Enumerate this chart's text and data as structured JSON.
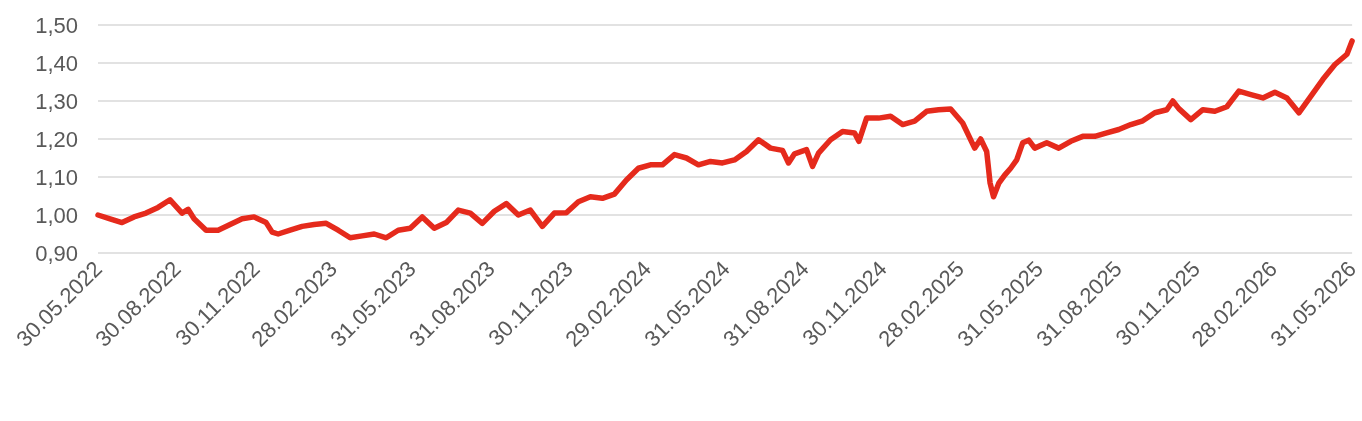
{
  "chart_data": {
    "type": "line",
    "x": [
      "2022-05-30",
      "2022-06-13",
      "2022-06-27",
      "2022-07-11",
      "2022-07-25",
      "2022-08-08",
      "2022-08-22",
      "2022-09-05",
      "2022-09-12",
      "2022-09-19",
      "2022-10-03",
      "2022-10-17",
      "2022-10-31",
      "2022-11-14",
      "2022-11-28",
      "2022-12-12",
      "2022-12-19",
      "2022-12-26",
      "2023-01-09",
      "2023-01-23",
      "2023-02-06",
      "2023-02-20",
      "2023-03-06",
      "2023-03-20",
      "2023-04-03",
      "2023-04-17",
      "2023-05-01",
      "2023-05-15",
      "2023-05-29",
      "2023-06-12",
      "2023-06-26",
      "2023-07-10",
      "2023-07-24",
      "2023-08-07",
      "2023-08-21",
      "2023-09-04",
      "2023-09-18",
      "2023-10-02",
      "2023-10-16",
      "2023-10-30",
      "2023-11-13",
      "2023-11-27",
      "2023-12-11",
      "2023-12-25",
      "2024-01-08",
      "2024-01-22",
      "2024-02-05",
      "2024-02-19",
      "2024-03-04",
      "2024-03-18",
      "2024-04-01",
      "2024-04-15",
      "2024-04-29",
      "2024-05-13",
      "2024-05-27",
      "2024-06-10",
      "2024-06-24",
      "2024-07-08",
      "2024-07-22",
      "2024-08-05",
      "2024-08-12",
      "2024-08-19",
      "2024-09-02",
      "2024-09-09",
      "2024-09-16",
      "2024-09-30",
      "2024-10-14",
      "2024-10-28",
      "2024-11-02",
      "2024-11-11",
      "2024-11-25",
      "2024-12-09",
      "2024-12-23",
      "2025-01-06",
      "2025-01-20",
      "2025-02-03",
      "2025-02-17",
      "2025-03-03",
      "2025-03-17",
      "2025-03-24",
      "2025-03-31",
      "2025-04-04",
      "2025-04-08",
      "2025-04-14",
      "2025-04-21",
      "2025-04-28",
      "2025-05-05",
      "2025-05-12",
      "2025-05-19",
      "2025-05-26",
      "2025-06-09",
      "2025-06-23",
      "2025-07-07",
      "2025-07-21",
      "2025-08-04",
      "2025-08-18",
      "2025-09-01",
      "2025-09-15",
      "2025-09-29",
      "2025-10-13",
      "2025-10-27",
      "2025-11-03",
      "2025-11-10",
      "2025-11-24",
      "2025-12-08",
      "2025-12-22",
      "2026-01-05",
      "2026-01-19",
      "2026-02-02",
      "2026-02-16",
      "2026-03-02",
      "2026-03-16",
      "2026-03-30",
      "2026-04-13",
      "2026-04-27",
      "2026-05-11",
      "2026-05-25",
      "2026-05-31"
    ],
    "series": [
      {
        "color": "#e52a1c",
        "values": [
          1.0,
          0.99,
          0.98,
          0.995,
          1.005,
          1.02,
          1.04,
          1.005,
          1.015,
          0.99,
          0.96,
          0.96,
          0.975,
          0.99,
          0.995,
          0.98,
          0.955,
          0.95,
          0.96,
          0.97,
          0.975,
          0.978,
          0.96,
          0.94,
          0.945,
          0.95,
          0.94,
          0.96,
          0.965,
          0.995,
          0.965,
          0.98,
          1.013,
          1.005,
          0.978,
          1.01,
          1.03,
          1.0,
          1.013,
          0.97,
          1.005,
          1.006,
          1.035,
          1.048,
          1.044,
          1.055,
          1.092,
          1.123,
          1.132,
          1.132,
          1.159,
          1.15,
          1.132,
          1.141,
          1.137,
          1.145,
          1.167,
          1.198,
          1.176,
          1.17,
          1.137,
          1.161,
          1.172,
          1.128,
          1.163,
          1.198,
          1.22,
          1.216,
          1.194,
          1.255,
          1.255,
          1.26,
          1.238,
          1.247,
          1.273,
          1.277,
          1.279,
          1.242,
          1.176,
          1.2,
          1.167,
          1.084,
          1.048,
          1.083,
          1.105,
          1.123,
          1.145,
          1.19,
          1.197,
          1.176,
          1.19,
          1.176,
          1.194,
          1.207,
          1.207,
          1.216,
          1.225,
          1.238,
          1.248,
          1.269,
          1.277,
          1.3,
          1.28,
          1.251,
          1.277,
          1.273,
          1.285,
          1.326,
          1.317,
          1.308,
          1.323,
          1.308,
          1.269,
          1.313,
          1.357,
          1.396,
          1.423,
          1.458
        ]
      }
    ],
    "xlim": [
      "2022-05-30",
      "2026-05-31"
    ],
    "xticks": [
      {
        "value": "2022-05-30",
        "label": "30.05.2022"
      },
      {
        "value": "2022-08-30",
        "label": "30.08.2022"
      },
      {
        "value": "2022-11-30",
        "label": "30.11.2022"
      },
      {
        "value": "2023-02-28",
        "label": "28.02.2023"
      },
      {
        "value": "2023-05-31",
        "label": "31.05.2023"
      },
      {
        "value": "2023-08-31",
        "label": "31.08.2023"
      },
      {
        "value": "2023-11-30",
        "label": "30.11.2023"
      },
      {
        "value": "2024-02-29",
        "label": "29.02.2024"
      },
      {
        "value": "2024-05-31",
        "label": "31.05.2024"
      },
      {
        "value": "2024-08-31",
        "label": "31.08.2024"
      },
      {
        "value": "2024-11-30",
        "label": "30.11.2024"
      },
      {
        "value": "2025-02-28",
        "label": "28.02.2025"
      },
      {
        "value": "2025-05-31",
        "label": "31.05.2025"
      },
      {
        "value": "2025-08-31",
        "label": "31.08.2025"
      },
      {
        "value": "2025-11-30",
        "label": "30.11.2025"
      },
      {
        "value": "2026-02-28",
        "label": "28.02.2026"
      },
      {
        "value": "2026-05-31",
        "label": "31.05.2026"
      }
    ],
    "ylim": [
      0.9,
      1.5
    ],
    "yticks": [
      {
        "value": 0.9,
        "label": "0,90"
      },
      {
        "value": 1.0,
        "label": "1,00"
      },
      {
        "value": 1.1,
        "label": "1,10"
      },
      {
        "value": 1.2,
        "label": "1,20"
      },
      {
        "value": 1.3,
        "label": "1,30"
      },
      {
        "value": 1.4,
        "label": "1,40"
      },
      {
        "value": 1.5,
        "label": "1,50"
      }
    ],
    "grid": "y"
  }
}
